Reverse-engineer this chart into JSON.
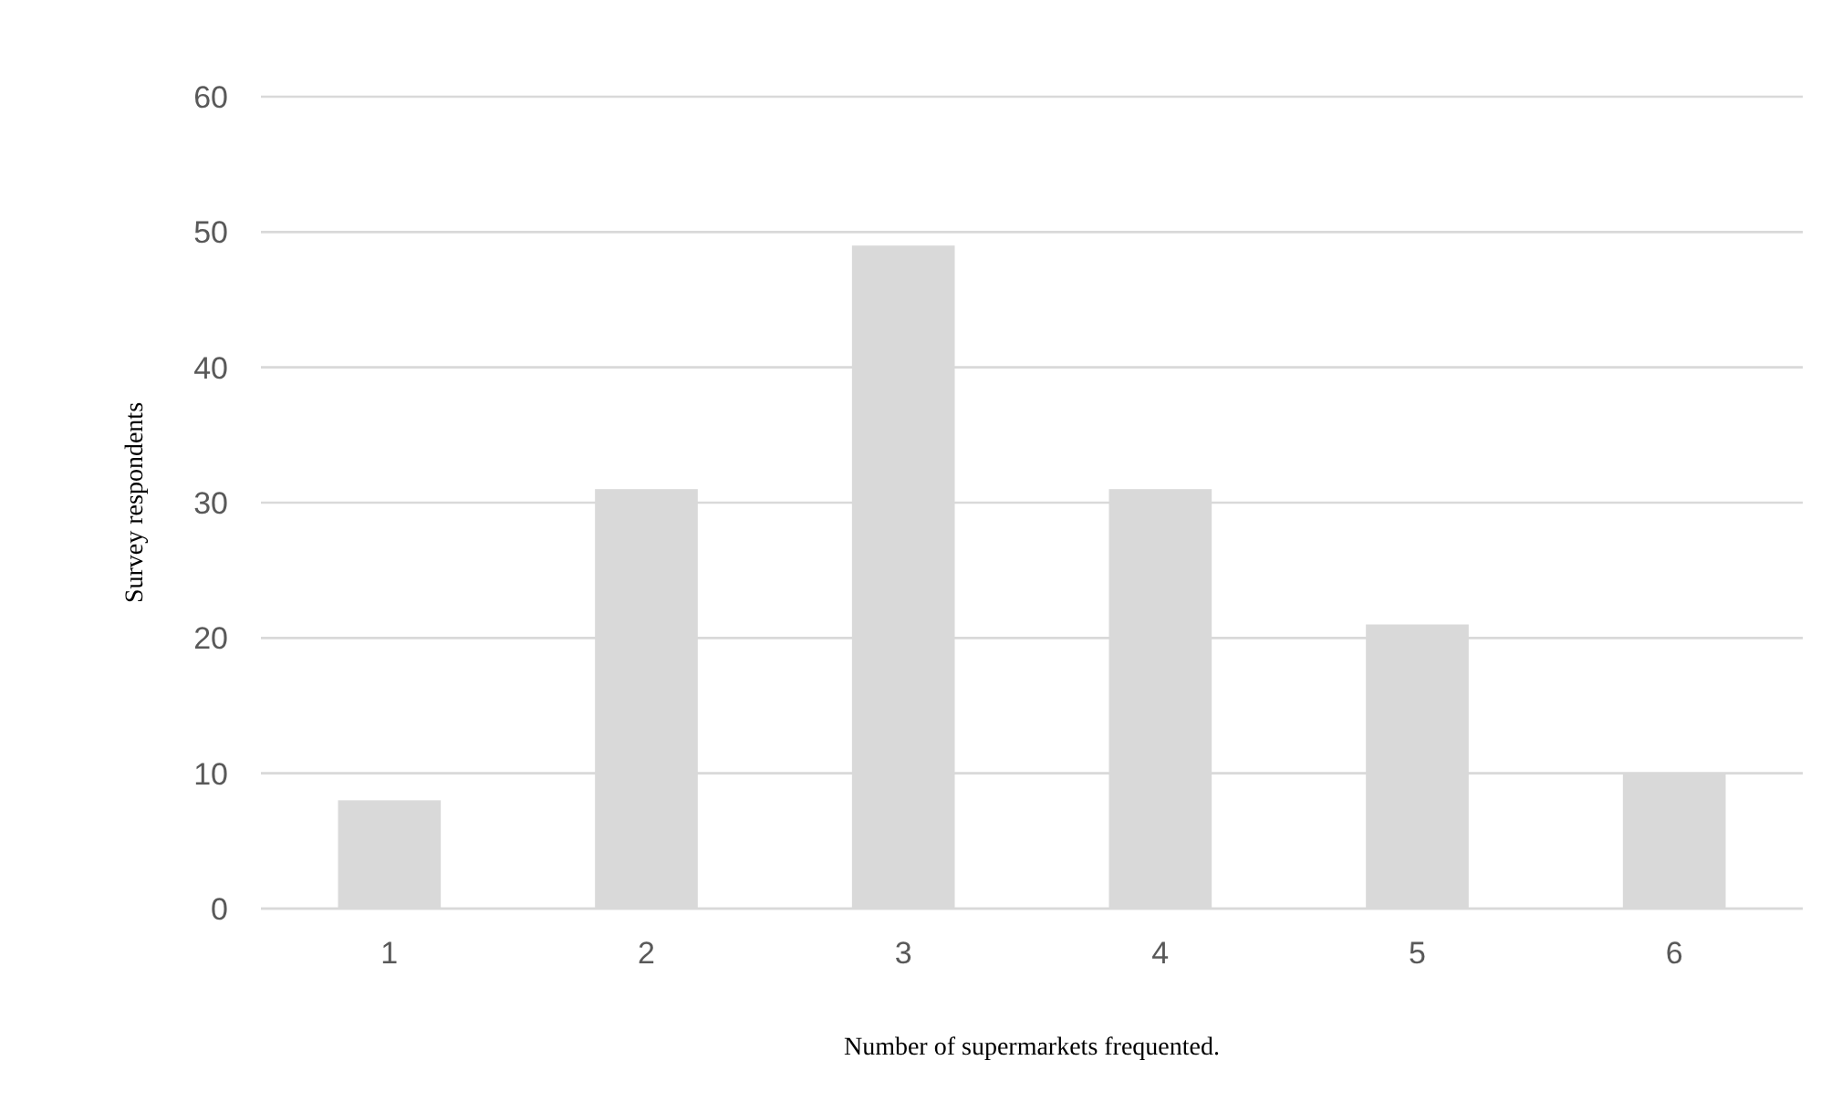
{
  "chart_data": {
    "type": "bar",
    "xlabel": "Number of supermarkets frequented.",
    "ylabel": "Survey respondents",
    "categories": [
      "1",
      "2",
      "3",
      "4",
      "5",
      "6"
    ],
    "values": [
      8,
      31,
      49,
      31,
      21,
      10
    ],
    "color": "#d9d9d9",
    "ylim": [
      0,
      60
    ],
    "yticks": [
      0,
      10,
      20,
      30,
      40,
      50,
      60
    ],
    "grid": "y"
  }
}
